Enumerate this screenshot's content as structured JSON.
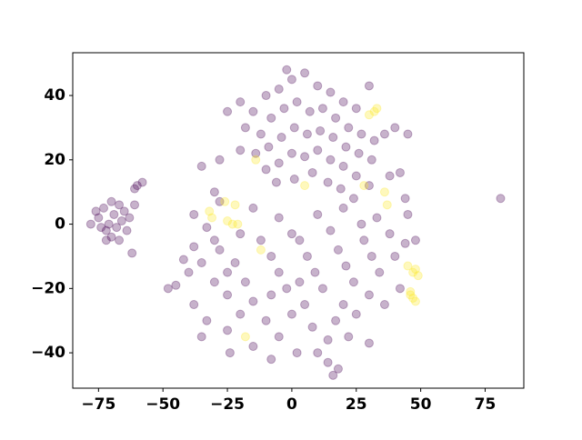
{
  "chart_data": {
    "type": "scatter",
    "xlim": [
      -85,
      90
    ],
    "ylim": [
      -51,
      53.3
    ],
    "xticks": [
      {
        "value": -75,
        "label": "−75"
      },
      {
        "value": -50,
        "label": "−50"
      },
      {
        "value": -25,
        "label": "−25"
      },
      0,
      25,
      50,
      75
    ],
    "yticks": [
      {
        "value": -40,
        "label": "−40"
      },
      {
        "value": -20,
        "label": "−20"
      },
      0,
      20,
      40
    ],
    "alpha": 0.3,
    "series": [
      {
        "color": "#440154",
        "x": [
          -75,
          -73,
          -71,
          -69,
          -67,
          -72,
          -70,
          -66,
          -68,
          -74,
          -76,
          -65,
          -63,
          -64,
          -70,
          -72,
          -67,
          -62,
          -78,
          -61,
          -60,
          -58,
          -61,
          -20,
          -15,
          -10,
          -5,
          0,
          5,
          10,
          15,
          20,
          25,
          30,
          -18,
          -12,
          -8,
          -3,
          2,
          7,
          12,
          17,
          22,
          27,
          32,
          -14,
          -9,
          -4,
          1,
          6,
          11,
          16,
          21,
          26,
          31,
          -10,
          -5,
          0,
          5,
          10,
          15,
          20,
          25,
          30,
          -6,
          1,
          8,
          14,
          19,
          24,
          36,
          40,
          45,
          -25,
          -28,
          -35,
          -30,
          -20,
          -2,
          14,
          38,
          42,
          44,
          -45,
          -40,
          -35,
          -30,
          -25,
          -38,
          -33,
          -28,
          -22,
          -18,
          -15,
          -20,
          -25,
          -12,
          -8,
          -5,
          -2,
          -10,
          -5,
          0,
          3,
          6,
          9,
          12,
          5,
          8,
          2,
          -8,
          -15,
          15,
          18,
          21,
          24,
          20,
          17,
          14,
          25,
          28,
          31,
          34,
          30,
          27,
          33,
          38,
          40,
          42,
          36,
          44,
          45,
          48,
          30,
          18,
          16,
          0,
          -20,
          -30,
          -38,
          -42,
          -48,
          -35,
          -24,
          10,
          22,
          -5,
          10,
          20,
          -15,
          -25,
          -8,
          3,
          -38,
          -33,
          -28,
          81
        ],
        "values": [
          2,
          5,
          0,
          3,
          6,
          -2,
          -4,
          1,
          -1,
          -1,
          4,
          4,
          2,
          -2,
          7,
          -5,
          -5,
          -9,
          0,
          6,
          12,
          13,
          11,
          38,
          35,
          40,
          42,
          45,
          47,
          43,
          41,
          38,
          36,
          43,
          30,
          28,
          33,
          36,
          38,
          35,
          36,
          33,
          30,
          28,
          26,
          22,
          24,
          27,
          30,
          28,
          29,
          27,
          24,
          22,
          20,
          17,
          19,
          22,
          21,
          23,
          20,
          18,
          15,
          12,
          13,
          14,
          16,
          13,
          11,
          8,
          28,
          30,
          28,
          35,
          20,
          18,
          10,
          23,
          48,
          -43,
          15,
          16,
          8,
          -19,
          -15,
          -12,
          -18,
          -22,
          -25,
          -30,
          -8,
          -12,
          -18,
          -24,
          -28,
          -33,
          -5,
          -10,
          -15,
          -20,
          -30,
          -35,
          -28,
          -5,
          -10,
          -15,
          -20,
          -25,
          -32,
          -40,
          -42,
          -38,
          -2,
          -8,
          -13,
          -18,
          -25,
          -30,
          -36,
          -28,
          -5,
          -10,
          -15,
          -22,
          0,
          2,
          -3,
          -10,
          -20,
          -25,
          -6,
          3,
          -5,
          -37,
          -45,
          -47,
          -3,
          -3,
          -5,
          -7,
          -11,
          -20,
          -35,
          -40,
          -40,
          -35,
          2,
          3,
          5,
          5,
          -15,
          -22,
          -18,
          3,
          -1,
          7,
          8
        ]
      },
      {
        "color": "#fde725",
        "x": [
          -25,
          -23,
          -22,
          -26,
          -32,
          -31,
          -21,
          47,
          49,
          48,
          46,
          47,
          48,
          46,
          45,
          32,
          30,
          33,
          5,
          36,
          -18,
          -12,
          37,
          28,
          -14
        ],
        "values": [
          1,
          0,
          6,
          7,
          4,
          2,
          0,
          -15,
          -16,
          -14,
          -21,
          -23,
          -24,
          -22,
          -13,
          35,
          34,
          36,
          12,
          10,
          -35,
          -8,
          6,
          12,
          20
        ]
      }
    ]
  }
}
